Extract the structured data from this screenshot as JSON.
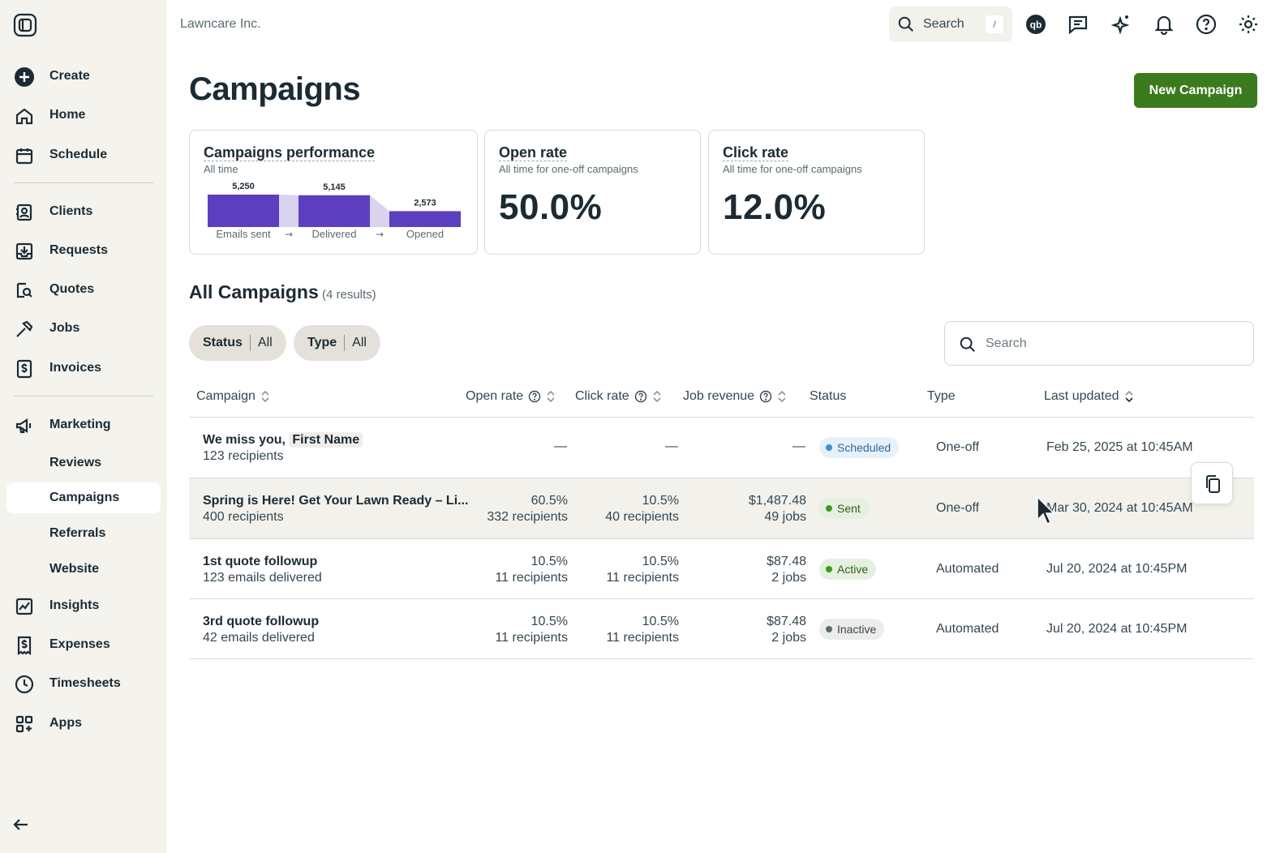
{
  "app": {
    "company": "Lawncare Inc.",
    "search_label": "Search",
    "search_shortcut": "/"
  },
  "sidebar": {
    "items": [
      {
        "label": "Create",
        "icon": "plus-circle-icon"
      },
      {
        "label": "Home",
        "icon": "home-icon"
      },
      {
        "label": "Schedule",
        "icon": "calendar-icon"
      },
      {
        "label": "Clients",
        "icon": "contact-card-icon"
      },
      {
        "label": "Requests",
        "icon": "inbox-download-icon"
      },
      {
        "label": "Quotes",
        "icon": "quote-search-icon"
      },
      {
        "label": "Jobs",
        "icon": "hammer-icon"
      },
      {
        "label": "Invoices",
        "icon": "invoice-dollar-icon"
      },
      {
        "label": "Marketing",
        "icon": "megaphone-icon"
      },
      {
        "label": "Insights",
        "icon": "chart-line-icon"
      },
      {
        "label": "Expenses",
        "icon": "receipt-dollar-icon"
      },
      {
        "label": "Timesheets",
        "icon": "clock-icon"
      },
      {
        "label": "Apps",
        "icon": "apps-grid-icon"
      }
    ],
    "marketing_sub": [
      "Reviews",
      "Campaigns",
      "Referrals",
      "Website"
    ],
    "active_sub": "Campaigns"
  },
  "page": {
    "title": "Campaigns",
    "new_button": "New Campaign"
  },
  "cards": {
    "performance": {
      "title": "Campaigns performance",
      "subtitle": "All time",
      "chart_data": {
        "type": "bar",
        "categories": [
          "Emails sent",
          "Delivered",
          "Opened"
        ],
        "values": [
          5250,
          5145,
          2573
        ],
        "value_labels": [
          "5,250",
          "5,145",
          "2,573"
        ],
        "color": "#5b3fbf",
        "connector_color": "#d9d3ef"
      }
    },
    "open_rate": {
      "title": "Open rate",
      "subtitle": "All time for one-off campaigns",
      "value": "50.0%"
    },
    "click_rate": {
      "title": "Click rate",
      "subtitle": "All time for one-off campaigns",
      "value": "12.0%"
    }
  },
  "list": {
    "title": "All Campaigns",
    "count": "(4 results)",
    "filters": [
      {
        "name": "Status",
        "value": "All"
      },
      {
        "name": "Type",
        "value": "All"
      }
    ],
    "search_placeholder": "Search",
    "columns": [
      "Campaign",
      "Open rate",
      "Click rate",
      "Job revenue",
      "Status",
      "Type",
      "Last updated"
    ],
    "rows": [
      {
        "name_prefix": "We miss you, ",
        "name_chip": "First Name",
        "sub": "123 recipients",
        "open_rate": "—",
        "click_rate": "—",
        "revenue": "—",
        "status": "Scheduled",
        "type": "One-off",
        "updated": "Feb 25, 2025 at 10:45AM"
      },
      {
        "name": "Spring is Here! Get Your Lawn Ready – Li...",
        "sub": "400 recipients",
        "open_rate": "60.5%",
        "open_sub": "332 recipients",
        "click_rate": "10.5%",
        "click_sub": "40 recipients",
        "revenue": "$1,487.48",
        "revenue_sub": "49 jobs",
        "status": "Sent",
        "type": "One-off",
        "updated": "Mar 30, 2024 at 10:45AM"
      },
      {
        "name": "1st quote followup",
        "sub": "123 emails delivered",
        "open_rate": "10.5%",
        "open_sub": "11 recipients",
        "click_rate": "10.5%",
        "click_sub": "11 recipients",
        "revenue": "$87.48",
        "revenue_sub": "2 jobs",
        "status": "Active",
        "type": "Automated",
        "updated": "Jul 20, 2024 at 10:45PM"
      },
      {
        "name": "3rd quote followup",
        "sub": "42 emails delivered",
        "open_rate": "10.5%",
        "open_sub": "11 recipients",
        "click_rate": "10.5%",
        "click_sub": "11 recipients",
        "revenue": "$87.48",
        "revenue_sub": "2 jobs",
        "status": "Inactive",
        "type": "Automated",
        "updated": "Jul 20, 2024 at 10:45PM"
      }
    ]
  },
  "colors": {
    "primary_green": "#3c7a1e",
    "sidebar_bg": "#f4f3ee",
    "text_dark": "#1c2b33"
  }
}
